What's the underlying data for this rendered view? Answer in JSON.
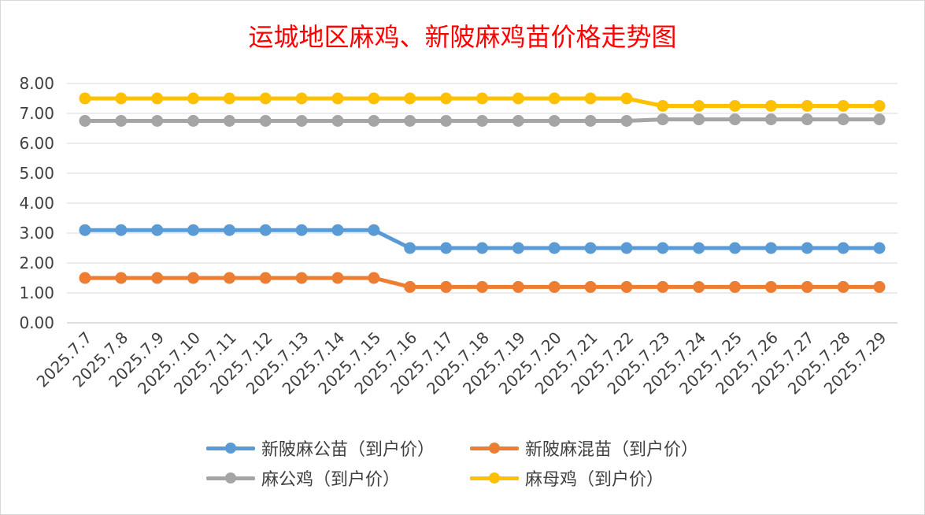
{
  "chart_data": {
    "type": "line",
    "title": "运城地区麻鸡、新陂麻鸡苗价格走势图",
    "xlabel": "",
    "ylabel": "",
    "ylim": [
      0,
      8
    ],
    "yticks": [
      "0.00",
      "1.00",
      "2.00",
      "3.00",
      "4.00",
      "5.00",
      "6.00",
      "7.00",
      "8.00"
    ],
    "grid": true,
    "legend_position": "bottom",
    "categories": [
      "2025.7.7",
      "2025.7.8",
      "2025.7.9",
      "2025.7.10",
      "2025.7.11",
      "2025.7.12",
      "2025.7.13",
      "2025.7.14",
      "2025.7.15",
      "2025.7.16",
      "2025.7.17",
      "2025.7.18",
      "2025.7.19",
      "2025.7.20",
      "2025.7.21",
      "2025.7.22",
      "2025.7.23",
      "2025.7.24",
      "2025.7.25",
      "2025.7.26",
      "2025.7.27",
      "2025.7.28",
      "2025.7.29"
    ],
    "series": [
      {
        "name": "新陂麻公苗（到户价）",
        "color": "#5b9bd5",
        "values": [
          3.1,
          3.1,
          3.1,
          3.1,
          3.1,
          3.1,
          3.1,
          3.1,
          3.1,
          2.5,
          2.5,
          2.5,
          2.5,
          2.5,
          2.5,
          2.5,
          2.5,
          2.5,
          2.5,
          2.5,
          2.5,
          2.5,
          2.5
        ]
      },
      {
        "name": "新陂麻混苗（到户价）",
        "color": "#ed7d31",
        "values": [
          1.5,
          1.5,
          1.5,
          1.5,
          1.5,
          1.5,
          1.5,
          1.5,
          1.5,
          1.2,
          1.2,
          1.2,
          1.2,
          1.2,
          1.2,
          1.2,
          1.2,
          1.2,
          1.2,
          1.2,
          1.2,
          1.2,
          1.2
        ]
      },
      {
        "name": "麻公鸡（到户价）",
        "color": "#a5a5a5",
        "values": [
          6.75,
          6.75,
          6.75,
          6.75,
          6.75,
          6.75,
          6.75,
          6.75,
          6.75,
          6.75,
          6.75,
          6.75,
          6.75,
          6.75,
          6.75,
          6.75,
          6.8,
          6.8,
          6.8,
          6.8,
          6.8,
          6.8,
          6.8
        ]
      },
      {
        "name": "麻母鸡（到户价）",
        "color": "#ffc000",
        "values": [
          7.5,
          7.5,
          7.5,
          7.5,
          7.5,
          7.5,
          7.5,
          7.5,
          7.5,
          7.5,
          7.5,
          7.5,
          7.5,
          7.5,
          7.5,
          7.5,
          7.25,
          7.25,
          7.25,
          7.25,
          7.25,
          7.25,
          7.25
        ]
      }
    ]
  }
}
